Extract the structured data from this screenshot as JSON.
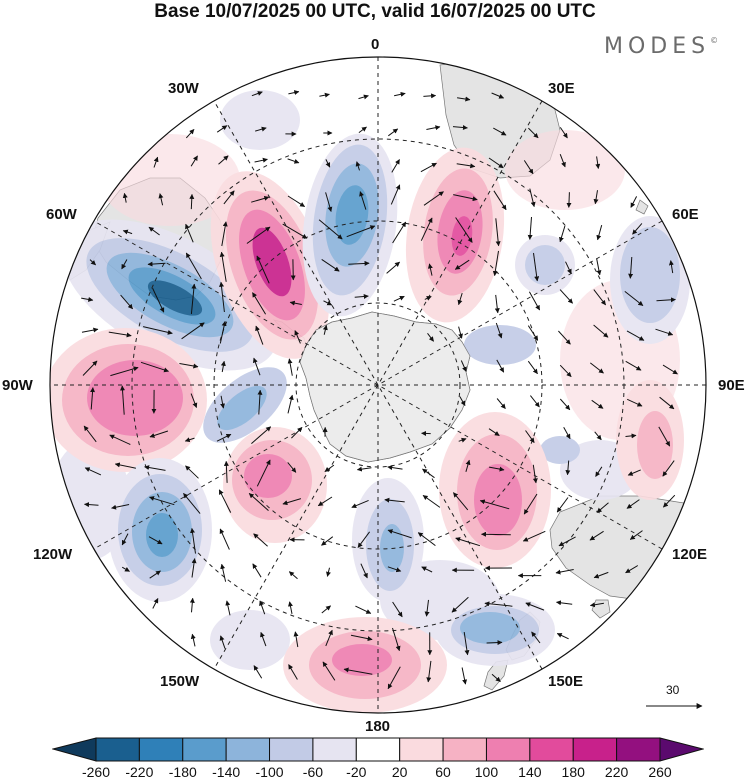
{
  "title": "Base 10/07/2025 00 UTC, valid 16/07/2025 00 UTC",
  "brand": "MODES",
  "brand_mark": "©",
  "longitude_labels": {
    "lon_0": "0",
    "lon_30e": "30E",
    "lon_60e": "60E",
    "lon_90e": "90E",
    "lon_120e": "120E",
    "lon_150e": "150E",
    "lon_180": "180",
    "lon_150w": "150W",
    "lon_120w": "120W",
    "lon_90w": "90W",
    "lon_60w": "60W",
    "lon_30w": "30W"
  },
  "vector_reference": "30",
  "colorbar": {
    "tick_labels": [
      "-260",
      "-220",
      "-180",
      "-140",
      "-100",
      "-60",
      "-20",
      "20",
      "60",
      "100",
      "140",
      "180",
      "220",
      "260"
    ],
    "colors": [
      "#0f3a5c",
      "#1a5f8f",
      "#2f80b8",
      "#5a9ccc",
      "#8db4db",
      "#c2cbe6",
      "#e6e4f1",
      "#ffffff",
      "#fadbdf",
      "#f6b2c4",
      "#ee7fb0",
      "#e24b9c",
      "#c8218b",
      "#93107f",
      "#5b0a6e"
    ]
  },
  "map_colors": {
    "land": "#e8e8e8",
    "coast": "#666666",
    "grid": "#222222",
    "border": "#111111"
  }
}
